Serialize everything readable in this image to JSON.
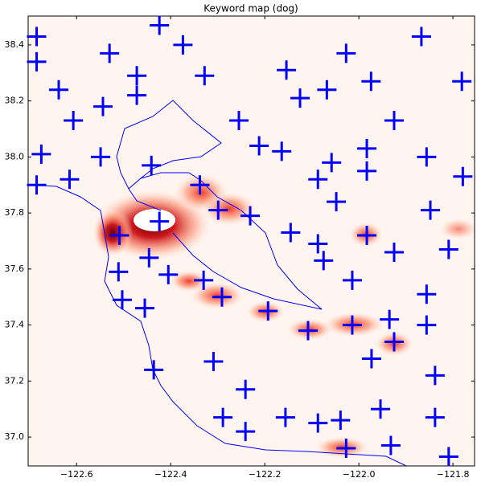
{
  "chart_data": {
    "type": "scatter",
    "title": "Keyword map (dog)",
    "marker": "+",
    "color": "#0000ff",
    "xlim": [
      -122.703,
      -121.754
    ],
    "ylim": [
      36.897,
      38.503
    ],
    "xticks": [
      {
        "value": -122.6,
        "label": "−122.6"
      },
      {
        "value": -122.4,
        "label": "−122.4"
      },
      {
        "value": -122.2,
        "label": "−122.2"
      },
      {
        "value": -122.0,
        "label": "−122.0"
      },
      {
        "value": -121.8,
        "label": "−121.8"
      }
    ],
    "yticks": [
      {
        "value": 37,
        "label": "37.0"
      },
      37.2,
      37.4,
      37.6,
      37.8,
      {
        "value": 38,
        "label": "38.0"
      },
      38.2,
      38.4
    ],
    "x": [
      -122.685,
      -122.685,
      -122.638,
      -122.424,
      -122.374,
      -122.53,
      -122.472,
      -122.472,
      -122.328,
      -122.544,
      -122.607,
      -122.675,
      -122.549,
      -122.685,
      -122.615,
      -122.441,
      -122.338,
      -122.299,
      -122.231,
      -122.255,
      -122.212,
      -122.164,
      -122.154,
      -122.125,
      -122.068,
      -122.027,
      -121.974,
      -121.867,
      -121.781,
      -121.925,
      -122.058,
      -122.087,
      -121.983,
      -121.983,
      -121.856,
      -121.779,
      -122.048,
      -121.848,
      -122.424,
      -122.509,
      -122.446,
      -122.405,
      -122.511,
      -122.503,
      -122.455,
      -122.33,
      -122.291,
      -122.193,
      -122.145,
      -122.087,
      -122.075,
      -121.983,
      -121.925,
      -121.809,
      -122.014,
      -121.856,
      -122.108,
      -122.014,
      -121.935,
      -121.925,
      -121.856,
      -121.973,
      -122.309,
      -122.436,
      -122.241,
      -122.289,
      -122.241,
      -122.156,
      -122.087,
      -122.039,
      -121.954,
      -122.027,
      -121.932,
      -121.838,
      -121.838,
      -121.809
    ],
    "values": [
      38.43,
      38.34,
      38.24,
      38.47,
      38.4,
      38.37,
      38.29,
      38.22,
      38.29,
      38.18,
      38.13,
      38.01,
      38.0,
      37.9,
      37.92,
      37.97,
      37.9,
      37.81,
      37.79,
      38.13,
      38.04,
      38.02,
      38.31,
      38.21,
      38.24,
      38.37,
      38.27,
      38.43,
      38.27,
      38.13,
      37.98,
      37.92,
      38.03,
      37.95,
      38.0,
      37.93,
      37.84,
      37.81,
      37.77,
      37.72,
      37.64,
      37.58,
      37.59,
      37.49,
      37.46,
      37.56,
      37.5,
      37.45,
      37.73,
      37.69,
      37.63,
      37.72,
      37.66,
      37.67,
      37.56,
      37.51,
      37.38,
      37.4,
      37.42,
      37.34,
      37.4,
      37.28,
      37.27,
      37.24,
      37.17,
      37.07,
      37.02,
      37.07,
      37.05,
      37.06,
      37.1,
      36.96,
      36.97,
      37.22,
      37.07,
      36.93
    ]
  }
}
